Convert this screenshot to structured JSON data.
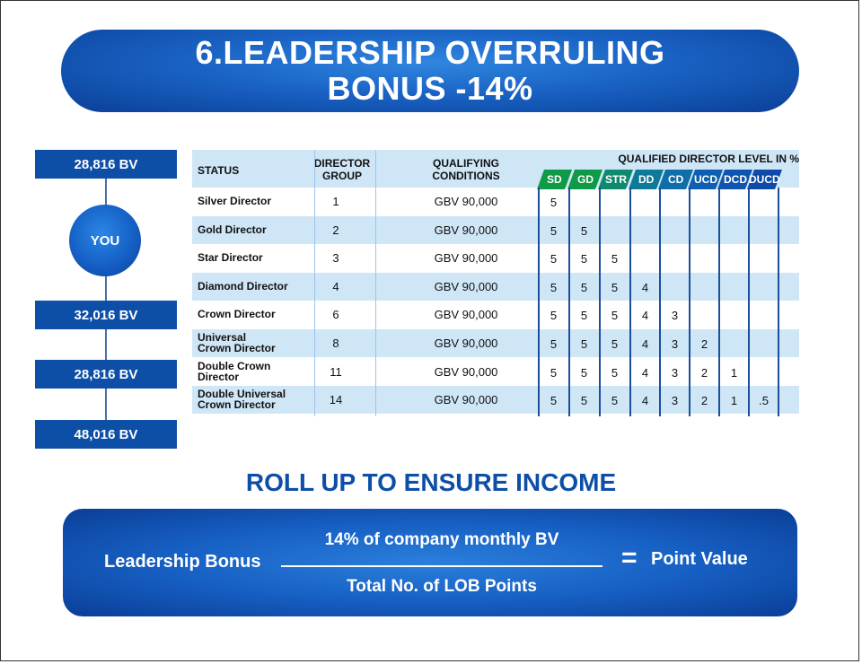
{
  "title": {
    "line1": "6.LEADERSHIP OVERRULING",
    "line2": "BONUS -14%"
  },
  "tree": {
    "top_bv": "28,816 BV",
    "you": "YOU",
    "bv_1": "32,016 BV",
    "bv_2": "28,816 BV",
    "bv_3": "48,016 BV"
  },
  "table": {
    "headers": {
      "status": "STATUS",
      "director_group": "DIRECTOR GROUP",
      "qualifying": "QUALIFYING CONDITIONS",
      "qualified_level": "QUALIFIED DIRECTOR LEVEL IN %"
    },
    "levels": [
      {
        "label": "SD",
        "color": "#0e9a46"
      },
      {
        "label": "GD",
        "color": "#0e9a46"
      },
      {
        "label": "STR",
        "color": "#0f8a6e"
      },
      {
        "label": "DD",
        "color": "#0f7a98"
      },
      {
        "label": "CD",
        "color": "#0f6ea8"
      },
      {
        "label": "UCD",
        "color": "#0f5fb0"
      },
      {
        "label": "DCD",
        "color": "#0f55b0"
      },
      {
        "label": "DUCD",
        "color": "#0f4aa8"
      }
    ],
    "rows": [
      {
        "status1": "Silver Director",
        "status2": "",
        "group": "1",
        "cond": "GBV 90,000",
        "vals": [
          "5",
          "",
          "",
          "",
          "",
          "",
          "",
          ""
        ]
      },
      {
        "status1": "Gold Director",
        "status2": "",
        "group": "2",
        "cond": "GBV 90,000",
        "vals": [
          "5",
          "5",
          "",
          "",
          "",
          "",
          "",
          ""
        ]
      },
      {
        "status1": "Star Director",
        "status2": "",
        "group": "3",
        "cond": "GBV 90,000",
        "vals": [
          "5",
          "5",
          "5",
          "",
          "",
          "",
          "",
          ""
        ]
      },
      {
        "status1": "Diamond Director",
        "status2": "",
        "group": "4",
        "cond": "GBV 90,000",
        "vals": [
          "5",
          "5",
          "5",
          "4",
          "",
          "",
          "",
          ""
        ]
      },
      {
        "status1": "Crown Director",
        "status2": "",
        "group": "6",
        "cond": "GBV 90,000",
        "vals": [
          "5",
          "5",
          "5",
          "4",
          "3",
          "",
          "",
          ""
        ]
      },
      {
        "status1": "Universal",
        "status2": "Crown Director",
        "group": "8",
        "cond": "GBV 90,000",
        "vals": [
          "5",
          "5",
          "5",
          "4",
          "3",
          "2",
          "",
          ""
        ]
      },
      {
        "status1": "Double Crown",
        "status2": "Director",
        "group": "11",
        "cond": "GBV 90,000",
        "vals": [
          "5",
          "5",
          "5",
          "4",
          "3",
          "2",
          "1",
          ""
        ]
      },
      {
        "status1": "Double Universal",
        "status2": "Crown Director",
        "group": "14",
        "cond": "GBV 90,000",
        "vals": [
          "5",
          "5",
          "5",
          "4",
          "3",
          "2",
          "1",
          ".5"
        ]
      }
    ]
  },
  "rollup": "ROLL UP TO ENSURE INCOME",
  "formula": {
    "lead": "Leadership Bonus",
    "numerator": "14% of company monthly BV",
    "denominator": "Total No. of LOB Points",
    "equals": "=",
    "result": "Point Value"
  }
}
